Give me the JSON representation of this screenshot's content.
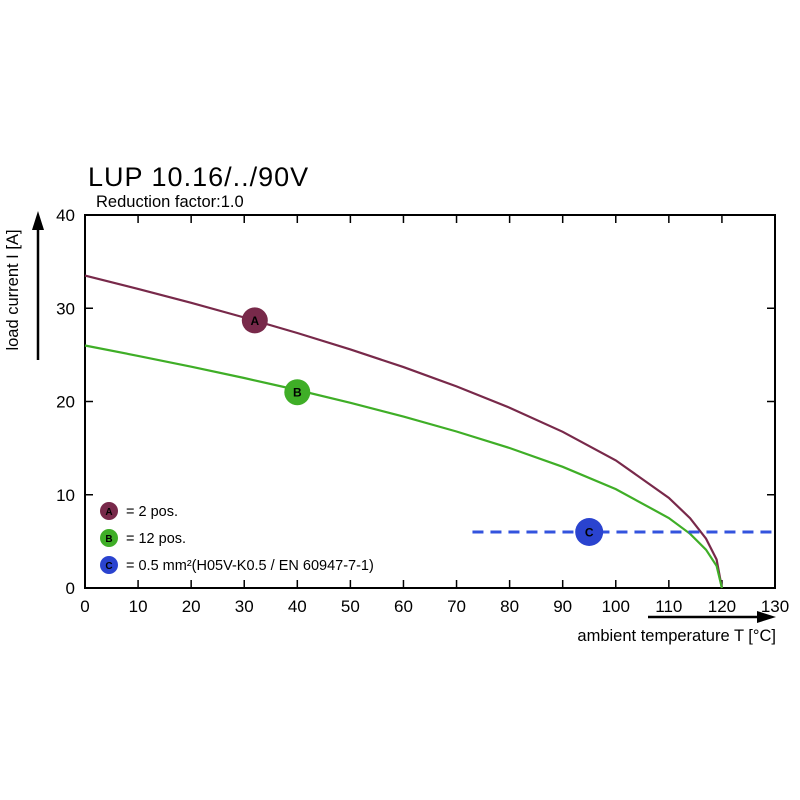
{
  "chart_data": {
    "type": "line",
    "title": "LUP 10.16/../90V",
    "subtitle": "Reduction factor:1.0",
    "xlabel": "ambient temperature T [°C]",
    "ylabel": "load current I [A]",
    "xlim": [
      0,
      130
    ],
    "ylim": [
      0,
      40
    ],
    "x_ticks": [
      0,
      10,
      20,
      30,
      40,
      50,
      60,
      70,
      80,
      90,
      100,
      110,
      120,
      130
    ],
    "y_ticks": [
      0,
      10,
      20,
      30,
      40
    ],
    "grid": false,
    "axis_color": "#000000",
    "background": "#ffffff",
    "x": [
      0,
      10,
      20,
      30,
      40,
      50,
      60,
      70,
      80,
      90,
      100,
      110,
      114,
      117,
      119,
      120
    ],
    "series": [
      {
        "name": "A",
        "label": "2 pos.",
        "type": "curve",
        "color": "#78294a",
        "values": [
          33.5,
          32.07,
          30.58,
          29.01,
          27.35,
          25.59,
          23.69,
          21.62,
          19.34,
          16.75,
          13.68,
          9.67,
          7.49,
          5.3,
          3.06,
          0
        ],
        "marker": {
          "letter": "A",
          "x": 32,
          "y": 28.7,
          "radius": 13
        }
      },
      {
        "name": "B",
        "label": "12 pos.",
        "type": "curve",
        "color": "#3fae27",
        "values": [
          26,
          24.89,
          23.73,
          22.52,
          21.23,
          19.86,
          18.38,
          16.78,
          15.01,
          13.0,
          10.61,
          7.51,
          5.81,
          4.11,
          2.37,
          0
        ],
        "marker": {
          "letter": "B",
          "x": 40,
          "y": 21,
          "radius": 13
        }
      },
      {
        "name": "C",
        "label": "0.5 mm²(H05V-K0.5 / EN 60947-7-1)",
        "type": "hline",
        "color": "#3353de",
        "y": 6,
        "x_start": 73,
        "x_end": 130,
        "dash": "11 7",
        "marker": {
          "letter": "C",
          "x": 95,
          "y": 6,
          "radius": 14,
          "color": "#2a43cf"
        }
      }
    ],
    "legend": [
      {
        "letter": "A",
        "color": "#78294a",
        "label": "= 2 pos."
      },
      {
        "letter": "B",
        "color": "#3fae27",
        "label": "= 12 pos."
      },
      {
        "letter": "C",
        "color": "#2a43cf",
        "label": "= 0.5 mm²(H05V-K0.5 / EN 60947-7-1)"
      }
    ]
  }
}
